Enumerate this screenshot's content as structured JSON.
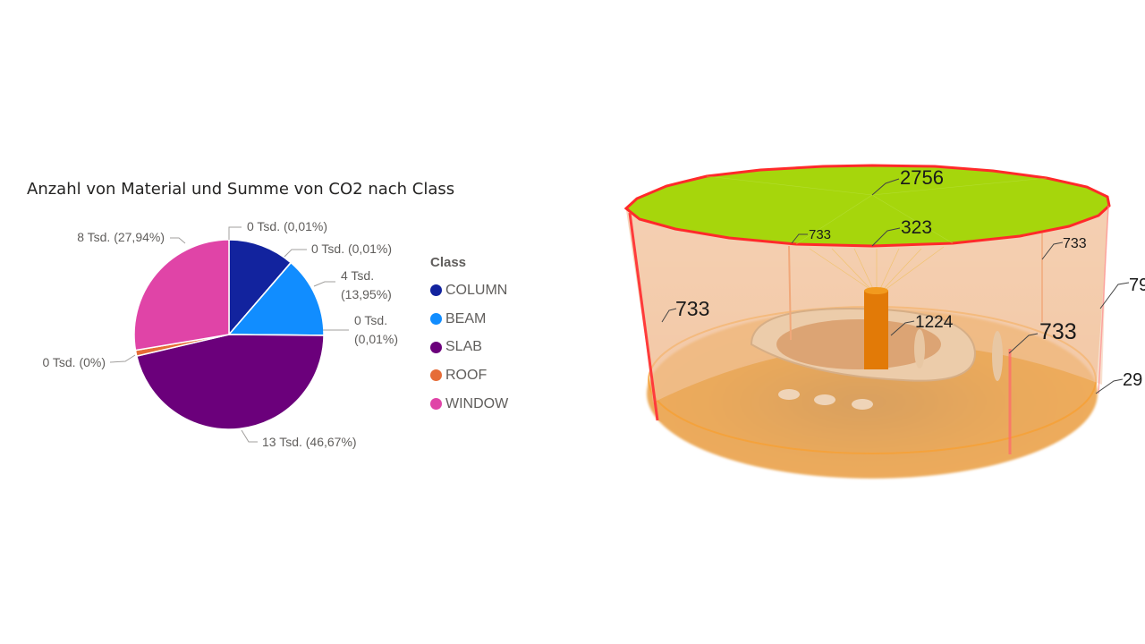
{
  "chart_data": {
    "type": "pie",
    "title": "Anzahl von Material und Summe von CO2 nach Class",
    "legend_title": "Class",
    "legend_position": "right",
    "categories": [
      "COLUMN",
      "BEAM",
      "SLAB",
      "ROOF",
      "WINDOW"
    ],
    "colors": {
      "COLUMN": "#12239e",
      "BEAM": "#118dff",
      "SLAB": "#6b007b",
      "ROOF": "#e66c37",
      "WINDOW": "#e044a7"
    },
    "slices": [
      {
        "class": "COLUMN",
        "percent": 11.42,
        "label": "",
        "color": "#12239e"
      },
      {
        "class": "COLUMN",
        "percent": 0.01,
        "label": "0 Tsd. (0,01%)",
        "color": "#12239e"
      },
      {
        "class": "BEAM",
        "percent": 0.01,
        "label": "0 Tsd. (0,01%)",
        "color": "#118dff"
      },
      {
        "class": "BEAM",
        "percent": 13.95,
        "label": "4 Tsd. (13,95%)",
        "color": "#118dff"
      },
      {
        "class": "SLAB",
        "percent": 0.01,
        "label": "0 Tsd. (0,01%)",
        "color": "#6b007b"
      },
      {
        "class": "SLAB",
        "percent": 46.67,
        "label": "13 Tsd. (46,67%)",
        "color": "#6b007b"
      },
      {
        "class": "ROOF",
        "percent": 0,
        "label": "0 Tsd. (0%)",
        "color": "#e66c37"
      },
      {
        "class": "ROOF",
        "percent": 1.0,
        "label": "",
        "color": "#e66c37"
      },
      {
        "class": "WINDOW",
        "percent": 27.94,
        "label": "8 Tsd. (27,94%)",
        "color": "#e044a7"
      }
    ]
  },
  "scene_labels": {
    "top": "2756",
    "center": "323",
    "upper_left": "733",
    "left": "733",
    "right_large": "733",
    "right_upper": "733",
    "column": "1224",
    "edge_right_top": "79",
    "edge_right_bottom": "29"
  }
}
